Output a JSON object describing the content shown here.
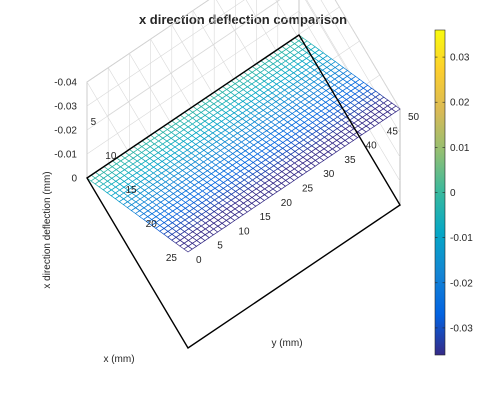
{
  "chart_data": {
    "type": "surface",
    "title": "x direction deflection comparison",
    "xlabel": "x (mm)",
    "ylabel": "y (mm)",
    "zlabel": "x direction deflection (mm)",
    "xlim": [
      0,
      25
    ],
    "ylim": [
      0,
      50
    ],
    "zlim": [
      -0.04,
      0
    ],
    "x_ticks": [
      5,
      10,
      15,
      20,
      25
    ],
    "y_ticks": [
      0,
      5,
      10,
      15,
      20,
      25,
      30,
      35,
      40,
      45,
      50
    ],
    "z_ticks": [
      0,
      -0.01,
      -0.02,
      -0.03,
      -0.04
    ],
    "z_tick_labels": [
      "0",
      "-0.01",
      "-0.02",
      "-0.03",
      "-0.04"
    ],
    "grid": true,
    "surface": {
      "mesh": true,
      "z_at_x0": 0,
      "z_at_x25": -0.04,
      "depends_on": "x"
    },
    "reference_plane": {
      "z": 0,
      "outline_color": "#000000"
    },
    "colorbar": {
      "position": "right",
      "colormap": "parula",
      "limits": [
        -0.036,
        0.036
      ],
      "ticks": [
        0.03,
        0.02,
        0.01,
        0,
        -0.01,
        -0.02,
        -0.03
      ],
      "tick_labels": [
        "0.03",
        "0.02",
        "0.01",
        "0",
        "-0.01",
        "-0.02",
        "-0.03"
      ]
    }
  }
}
